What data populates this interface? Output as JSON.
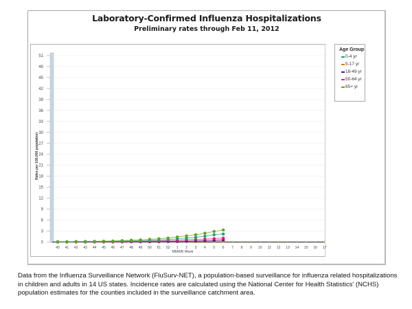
{
  "chart_data": {
    "type": "line",
    "title": "Laboratory-Confirmed Influenza Hospitalizations",
    "subtitle": "Preliminary rates through Feb 11, 2012",
    "xlabel": "MMWR Week",
    "ylabel": "Rates per 100,000 population",
    "ylim": [
      0,
      51
    ],
    "yticks": [
      0,
      3,
      6,
      9,
      12,
      15,
      18,
      21,
      24,
      27,
      30,
      33,
      36,
      39,
      42,
      45,
      48,
      51
    ],
    "categories": [
      "40",
      "41",
      "42",
      "43",
      "44",
      "45",
      "46",
      "47",
      "48",
      "49",
      "50",
      "51",
      "52",
      "1",
      "2",
      "3",
      "4",
      "5",
      "6",
      "7",
      "8",
      "9",
      "10",
      "11",
      "12",
      "13",
      "14",
      "15",
      "16",
      "17"
    ],
    "grid": true,
    "legend_position": "right",
    "legend_title": "Age Group",
    "series": [
      {
        "name": "0-4 yr",
        "color": "#1f9e78",
        "values": [
          0.05,
          0.05,
          0.1,
          0.1,
          0.15,
          0.15,
          0.2,
          0.25,
          0.3,
          0.35,
          0.45,
          0.55,
          0.7,
          0.9,
          1.1,
          1.3,
          1.6,
          2.0,
          2.2
        ]
      },
      {
        "name": "5-17 yr",
        "color": "#e8721c",
        "values": [
          0.0,
          0.0,
          0.0,
          0.0,
          0.02,
          0.02,
          0.03,
          0.03,
          0.05,
          0.05,
          0.07,
          0.08,
          0.1,
          0.12,
          0.15,
          0.17,
          0.2,
          0.25,
          0.3
        ]
      },
      {
        "name": "18-49 yr",
        "color": "#3b1e8c",
        "values": [
          0.02,
          0.02,
          0.03,
          0.03,
          0.04,
          0.05,
          0.06,
          0.07,
          0.08,
          0.1,
          0.12,
          0.15,
          0.18,
          0.22,
          0.27,
          0.32,
          0.4,
          0.5,
          0.6
        ]
      },
      {
        "name": "50-64 yr",
        "color": "#e0207a",
        "values": [
          0.03,
          0.03,
          0.04,
          0.05,
          0.06,
          0.08,
          0.1,
          0.12,
          0.15,
          0.2,
          0.25,
          0.3,
          0.4,
          0.5,
          0.6,
          0.7,
          0.8,
          0.95,
          1.1
        ]
      },
      {
        "name": "65+ yr",
        "color": "#5ea51c",
        "values": [
          0.1,
          0.12,
          0.15,
          0.18,
          0.2,
          0.25,
          0.3,
          0.4,
          0.5,
          0.6,
          0.75,
          0.9,
          1.1,
          1.4,
          1.7,
          2.0,
          2.4,
          2.9,
          3.3
        ]
      }
    ]
  },
  "caption": "Data from the Influenza  Surveillance  Network (FluSurv-NET),  a population-based surveillance  for influenza  related hospitalizations in children and adults in 14 US states.  Incidence rates are calculated using the National Center for Health Statistics' (NCHS) population estimates for the counties included in the surveillance  catchment  area."
}
